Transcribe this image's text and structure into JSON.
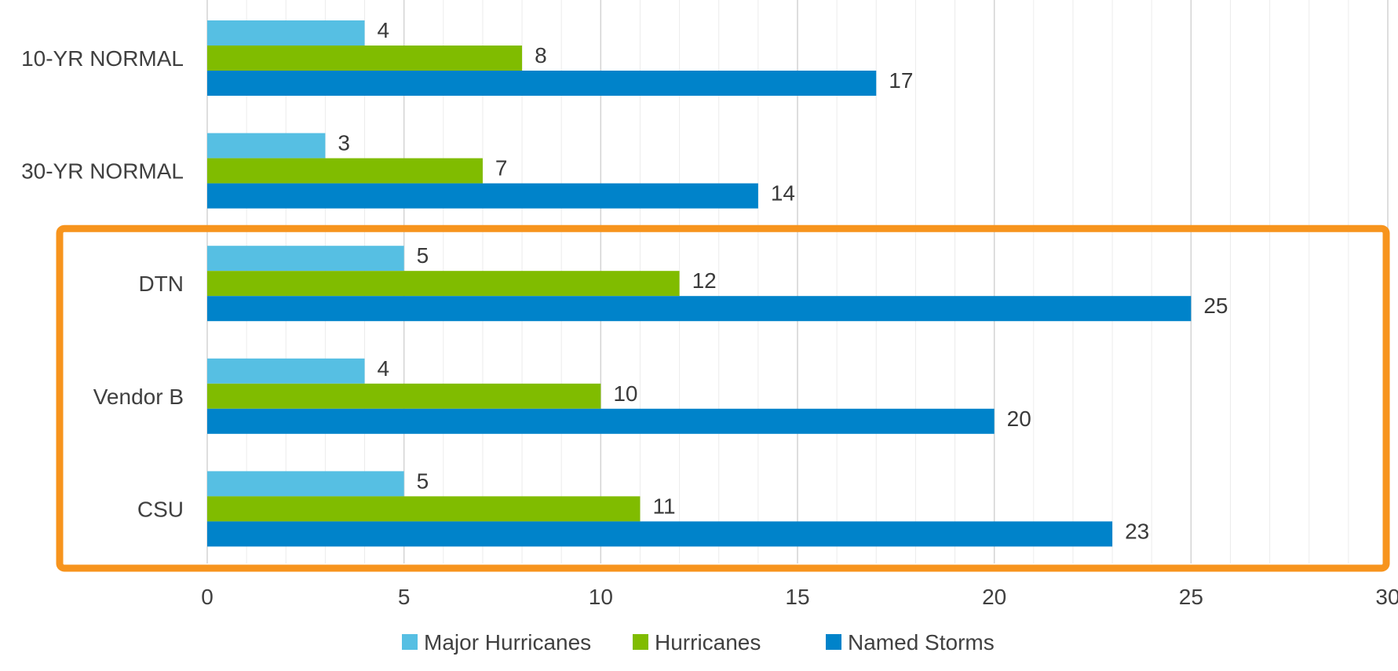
{
  "chart_data": {
    "type": "bar",
    "orientation": "horizontal",
    "categories": [
      "10-YR NORMAL",
      "30-YR NORMAL",
      "DTN",
      "Vendor B",
      "CSU"
    ],
    "series": [
      {
        "name": "Major Hurricanes",
        "color": "#56bfe3",
        "values": [
          4,
          3,
          5,
          4,
          5
        ]
      },
      {
        "name": "Hurricanes",
        "color": "#80bc00",
        "values": [
          8,
          7,
          12,
          10,
          11
        ]
      },
      {
        "name": "Named Storms",
        "color": "#0083ca",
        "values": [
          17,
          14,
          25,
          20,
          23
        ]
      }
    ],
    "x_ticks": [
      "0",
      "5",
      "10",
      "15",
      "20",
      "25",
      "30"
    ],
    "xlim": [
      0,
      30
    ],
    "grid": true,
    "legend_position": "bottom",
    "highlight": {
      "categories": [
        "DTN",
        "Vendor B",
        "CSU"
      ],
      "color": "#f7941d"
    },
    "data_labels": true
  }
}
